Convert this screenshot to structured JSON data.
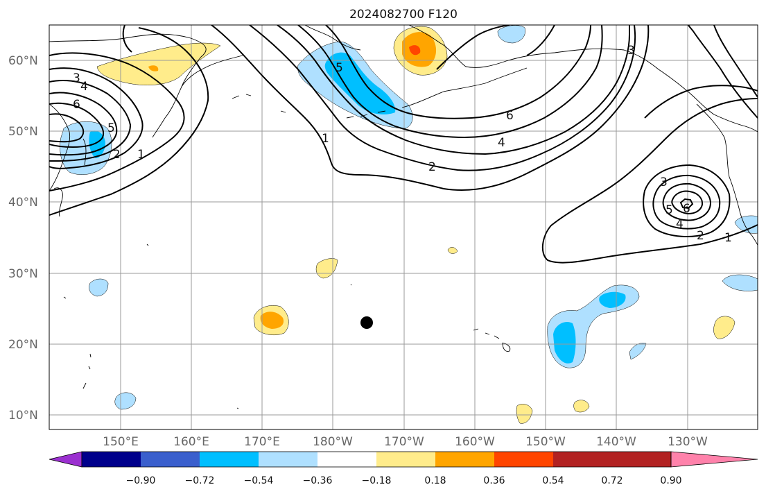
{
  "title": "2024082700 F120",
  "axes": {
    "lat_labels": [
      "60°N",
      "50°N",
      "40°N",
      "30°N",
      "20°N",
      "10°N"
    ],
    "lon_labels": [
      "150°E",
      "160°E",
      "170°E",
      "180°W",
      "170°W",
      "160°W",
      "150°W",
      "140°W",
      "130°W"
    ]
  },
  "contour_labels": [
    "3",
    "4",
    "6",
    "5",
    "2",
    "1",
    "5",
    "1",
    "6",
    "4",
    "2",
    "3",
    "3",
    "5",
    "6",
    "4",
    "2",
    "1"
  ],
  "colorbar": {
    "ticks": [
      "−0.90",
      "−0.72",
      "−0.54",
      "−0.36",
      "−0.18",
      "0.18",
      "0.36",
      "0.54",
      "0.72",
      "0.90"
    ],
    "colors": [
      "#9b30d0",
      "#00008b",
      "#3a5fcd",
      "#00bfff",
      "#afe0ff",
      "#ffffff",
      "#ffec8b",
      "#ffa500",
      "#ff4500",
      "#b22222",
      "#ff82ab"
    ]
  },
  "colors": {
    "light_blue": "#afe0ff",
    "blue": "#00bfff",
    "light_yellow": "#ffec8b",
    "orange": "#ffa500",
    "red_orange": "#ff4500",
    "storm_marker": "#000000"
  }
}
